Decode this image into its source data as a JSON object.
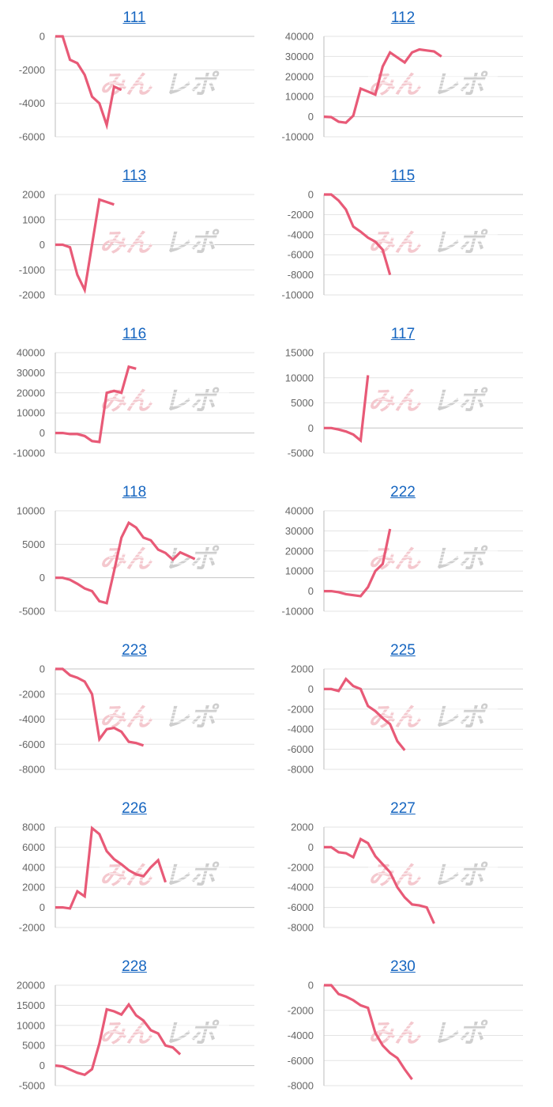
{
  "colors": {
    "line": "#e85a77",
    "grid": "#e3e3e3",
    "axis": "#bdbdbd",
    "tick_text": "#666666",
    "title_link": "#1565c0",
    "watermark_pink": "#f3c3c9",
    "watermark_gray": "#c9c9c9"
  },
  "watermark": "みんレポ",
  "chart_data": [
    {
      "type": "line",
      "title": "111",
      "ylim": [
        -6000,
        0
      ],
      "yticks": [
        -6000,
        -4000,
        -2000,
        0
      ],
      "series": [
        {
          "values": [
            0,
            0,
            -1400,
            -1600,
            -2300,
            -3600,
            -4000,
            -5300,
            -3000,
            -3200
          ]
        }
      ]
    },
    {
      "type": "line",
      "title": "112",
      "ylim": [
        -10000,
        40000
      ],
      "yticks": [
        -10000,
        0,
        10000,
        20000,
        30000,
        40000
      ],
      "series": [
        {
          "values": [
            0,
            -200,
            -2500,
            -3000,
            500,
            14000,
            12500,
            11000,
            25000,
            32000,
            29500,
            27000,
            32000,
            33500,
            33000,
            32500,
            30000
          ]
        }
      ]
    },
    {
      "type": "line",
      "title": "113",
      "ylim": [
        -2000,
        2000
      ],
      "yticks": [
        -2000,
        -1000,
        0,
        1000,
        2000
      ],
      "series": [
        {
          "values": [
            0,
            0,
            -100,
            -1200,
            -1800,
            0,
            1800,
            1700,
            1600
          ]
        }
      ]
    },
    {
      "type": "line",
      "title": "115",
      "ylim": [
        -10000,
        0
      ],
      "yticks": [
        -10000,
        -8000,
        -6000,
        -4000,
        -2000,
        0
      ],
      "series": [
        {
          "values": [
            0,
            0,
            -600,
            -1500,
            -3200,
            -3700,
            -4300,
            -4700,
            -5500,
            -8000
          ]
        }
      ]
    },
    {
      "type": "line",
      "title": "116",
      "ylim": [
        -10000,
        40000
      ],
      "yticks": [
        -10000,
        0,
        10000,
        20000,
        30000,
        40000
      ],
      "series": [
        {
          "values": [
            0,
            0,
            -500,
            -500,
            -1500,
            -4000,
            -4500,
            20000,
            21000,
            20000,
            33000,
            32000
          ]
        }
      ]
    },
    {
      "type": "line",
      "title": "117",
      "ylim": [
        -5000,
        15000
      ],
      "yticks": [
        -5000,
        0,
        5000,
        10000,
        15000
      ],
      "series": [
        {
          "values": [
            0,
            0,
            -300,
            -700,
            -1300,
            -2500,
            10500
          ]
        }
      ]
    },
    {
      "type": "line",
      "title": "118",
      "ylim": [
        -5000,
        10000
      ],
      "yticks": [
        -5000,
        0,
        5000,
        10000
      ],
      "series": [
        {
          "values": [
            0,
            0,
            -300,
            -900,
            -1600,
            -2000,
            -3500,
            -3800,
            1000,
            6000,
            8200,
            7500,
            6000,
            5600,
            4200,
            3700,
            2700,
            3800,
            3300,
            2800
          ]
        }
      ]
    },
    {
      "type": "line",
      "title": "222",
      "ylim": [
        -10000,
        40000
      ],
      "yticks": [
        -10000,
        0,
        10000,
        20000,
        30000,
        40000
      ],
      "series": [
        {
          "values": [
            0,
            0,
            -500,
            -1500,
            -2000,
            -2500,
            2000,
            10000,
            13500,
            31000
          ]
        }
      ]
    },
    {
      "type": "line",
      "title": "223",
      "ylim": [
        -8000,
        0
      ],
      "yticks": [
        -8000,
        -6000,
        -4000,
        -2000,
        0
      ],
      "series": [
        {
          "values": [
            0,
            0,
            -500,
            -700,
            -1000,
            -2000,
            -5600,
            -4800,
            -4700,
            -5000,
            -5800,
            -5900,
            -6100
          ]
        }
      ]
    },
    {
      "type": "line",
      "title": "225",
      "ylim": [
        -8000,
        2000
      ],
      "yticks": [
        -8000,
        -6000,
        -4000,
        -2000,
        0,
        2000
      ],
      "series": [
        {
          "values": [
            0,
            0,
            -200,
            1000,
            300,
            0,
            -1700,
            -2200,
            -2900,
            -3500,
            -5200,
            -6100
          ]
        }
      ]
    },
    {
      "type": "line",
      "title": "226",
      "ylim": [
        -2000,
        8000
      ],
      "yticks": [
        -2000,
        0,
        2000,
        4000,
        6000,
        8000
      ],
      "series": [
        {
          "values": [
            0,
            0,
            -100,
            1600,
            1100,
            7900,
            7300,
            5600,
            4800,
            4300,
            3700,
            3300,
            3100,
            4000,
            4700,
            2500
          ]
        }
      ]
    },
    {
      "type": "line",
      "title": "227",
      "ylim": [
        -8000,
        2000
      ],
      "yticks": [
        -8000,
        -6000,
        -4000,
        -2000,
        0,
        2000
      ],
      "series": [
        {
          "values": [
            0,
            0,
            -500,
            -600,
            -1000,
            800,
            400,
            -900,
            -1700,
            -2500,
            -4000,
            -5000,
            -5700,
            -5800,
            -6000,
            -7600
          ]
        }
      ]
    },
    {
      "type": "line",
      "title": "228",
      "ylim": [
        -5000,
        20000
      ],
      "yticks": [
        -5000,
        0,
        5000,
        10000,
        15000,
        20000
      ],
      "series": [
        {
          "values": [
            0,
            -200,
            -1000,
            -1800,
            -2300,
            -900,
            5500,
            14000,
            13500,
            12700,
            15200,
            12500,
            11200,
            8800,
            8000,
            5000,
            4500,
            2800
          ]
        }
      ]
    },
    {
      "type": "line",
      "title": "230",
      "ylim": [
        -8000,
        0
      ],
      "yticks": [
        -8000,
        -6000,
        -4000,
        -2000,
        0
      ],
      "series": [
        {
          "values": [
            0,
            0,
            -700,
            -900,
            -1200,
            -1600,
            -1800,
            -3800,
            -4800,
            -5400,
            -5800,
            -6700,
            -7500
          ]
        }
      ]
    }
  ]
}
